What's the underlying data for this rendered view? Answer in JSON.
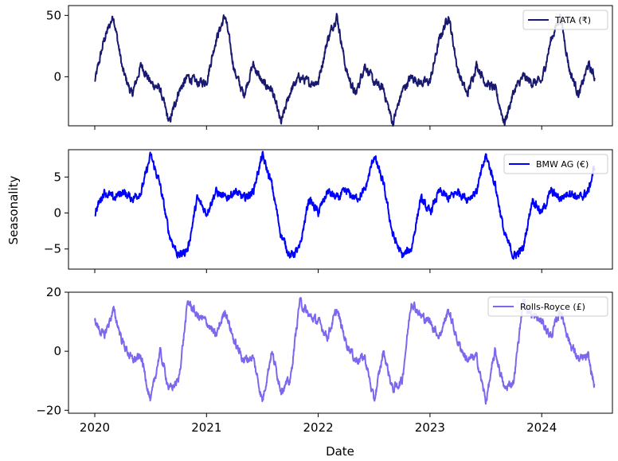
{
  "figure": {
    "xlabel": "Date",
    "ylabel": "Seasonality",
    "x_ticks": [
      "2020",
      "2021",
      "2022",
      "2023",
      "2024"
    ]
  },
  "chart_data": [
    {
      "type": "line",
      "legend_position": "upper-right",
      "series": [
        {
          "name": "TATA (₹)",
          "color": "#191970"
        }
      ],
      "ylim": [
        -40,
        58
      ],
      "y_ticks": [
        50,
        0
      ],
      "x": [
        "2020-01",
        "2020-02",
        "2020-03",
        "2020-04",
        "2020-05",
        "2020-06",
        "2020-07",
        "2020-08",
        "2020-09",
        "2020-10",
        "2020-11",
        "2020-12"
      ],
      "values": [
        -4,
        30,
        50,
        5,
        -15,
        10,
        -5,
        -10,
        -38,
        -12,
        0,
        -5
      ],
      "pattern": "repeats yearly, 2020-01 to 2024-06"
    },
    {
      "type": "line",
      "legend_position": "upper-right",
      "series": [
        {
          "name": "BMW AG (€)",
          "color": "#0000ff"
        }
      ],
      "ylim": [
        -7.8,
        8.8
      ],
      "y_ticks": [
        5,
        0,
        -5
      ],
      "x": [
        "2020-01",
        "2020-02",
        "2020-03",
        "2020-04",
        "2020-05",
        "2020-06",
        "2020-07",
        "2020-08",
        "2020-09",
        "2020-10",
        "2020-11",
        "2020-12"
      ],
      "values": [
        0,
        3,
        2,
        3,
        2,
        3,
        8,
        4,
        -3,
        -6,
        -5,
        2
      ],
      "pattern": "repeats yearly, 2020-01 to 2024-06"
    },
    {
      "type": "line",
      "legend_position": "upper-right",
      "series": [
        {
          "name": "Rolls-Royce (£)",
          "color": "#7b68ee"
        }
      ],
      "ylim": [
        -21,
        20
      ],
      "y_ticks": [
        20,
        0,
        -20
      ],
      "x": [
        "2020-01",
        "2020-02",
        "2020-03",
        "2020-04",
        "2020-05",
        "2020-06",
        "2020-07",
        "2020-08",
        "2020-09",
        "2020-10",
        "2020-11",
        "2020-12"
      ],
      "values": [
        10,
        5,
        14,
        3,
        -3,
        -2,
        -17,
        0,
        -13,
        -10,
        17,
        12
      ],
      "pattern": "repeats yearly, 2020-01 to 2024-06"
    }
  ]
}
